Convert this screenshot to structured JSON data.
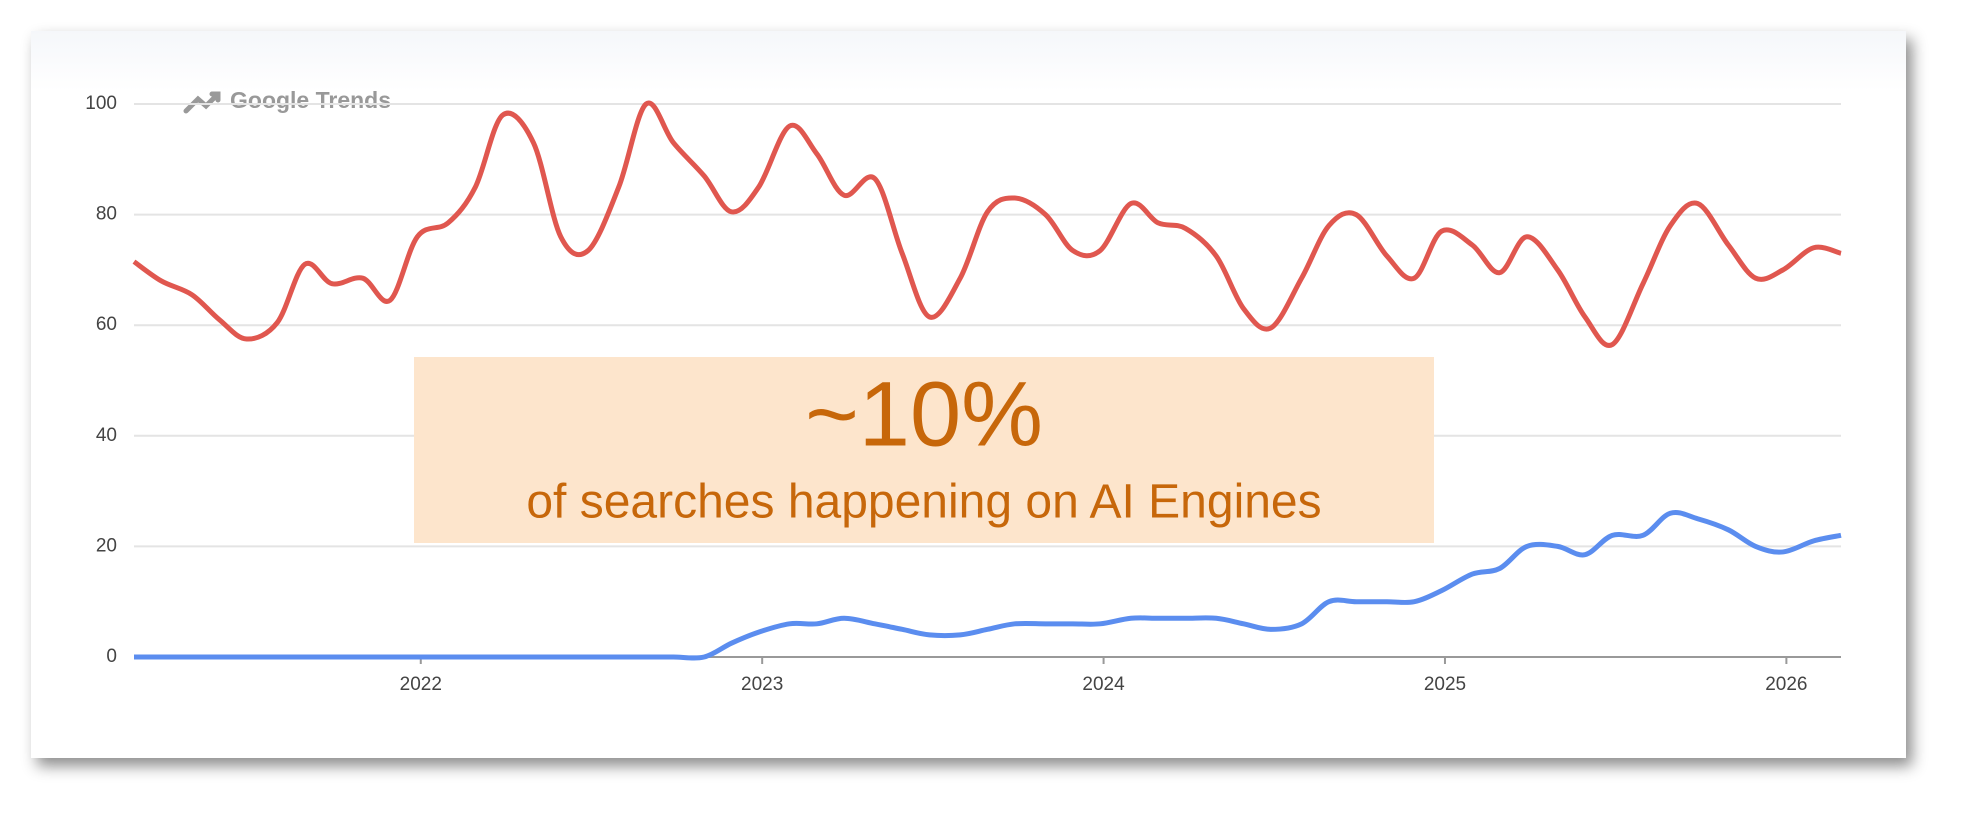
{
  "chart_data": {
    "type": "line",
    "brand": "Google Trends",
    "annotation": {
      "headline": "~10%",
      "text": "of searches happening on AI Engines"
    },
    "x": [
      2021.16,
      2021.24,
      2021.33,
      2021.41,
      2021.49,
      2021.58,
      2021.66,
      2021.74,
      2021.83,
      2021.91,
      2021.99,
      2022.08,
      2022.16,
      2022.24,
      2022.33,
      2022.41,
      2022.49,
      2022.58,
      2022.66,
      2022.74,
      2022.83,
      2022.91,
      2022.99,
      2023.08,
      2023.16,
      2023.24,
      2023.33,
      2023.41,
      2023.49,
      2023.58,
      2023.66,
      2023.74,
      2023.83,
      2023.91,
      2023.99,
      2024.08,
      2024.16,
      2024.24,
      2024.33,
      2024.41,
      2024.49,
      2024.58,
      2024.66,
      2024.74,
      2024.83,
      2024.91,
      2024.99,
      2025.08,
      2025.16,
      2025.24,
      2025.33,
      2025.41,
      2025.49,
      2025.58,
      2025.66,
      2025.74,
      2025.83,
      2025.91,
      2025.99,
      2026.08,
      2026.16
    ],
    "series": [
      {
        "color": "#e0574f",
        "values": [
          71.5,
          68,
          65.5,
          61,
          57.5,
          60.5,
          71,
          67.5,
          68.5,
          64.5,
          76,
          78.5,
          85,
          98,
          93,
          76,
          73.5,
          85,
          100,
          93,
          87,
          80.5,
          85,
          96,
          91,
          83.5,
          86.5,
          73,
          61.5,
          68.5,
          80.5,
          83,
          80,
          73.5,
          73.5,
          82,
          78.5,
          77.5,
          72.5,
          63,
          59.5,
          68.5,
          78,
          80,
          72.5,
          68.5,
          77,
          74.5,
          69.5,
          76,
          70,
          61.5,
          56.5,
          67.5,
          78,
          82,
          74.5,
          68.5,
          70,
          74,
          73
        ]
      },
      {
        "color": "#5b8def",
        "values": [
          0,
          0,
          0,
          0,
          0,
          0,
          0,
          0,
          0,
          0,
          0,
          0,
          0,
          0,
          0,
          0,
          0,
          0,
          0,
          0,
          0,
          2.5,
          4.5,
          6,
          6,
          7,
          6,
          5,
          4,
          4,
          5,
          6,
          6,
          6,
          6,
          7,
          7,
          7,
          7,
          6,
          5,
          6,
          10,
          10,
          10,
          10,
          12,
          15,
          16,
          20,
          20,
          18.5,
          22,
          22,
          26,
          25,
          23,
          20,
          19,
          21,
          22
        ]
      }
    ],
    "xlim": [
      2021.16,
      2026.16
    ],
    "xticks": [
      2022,
      2023,
      2024,
      2025,
      2026
    ],
    "ylim": [
      0,
      100
    ],
    "yticks": [
      0,
      20,
      40,
      60,
      80,
      100
    ],
    "grid": true
  }
}
